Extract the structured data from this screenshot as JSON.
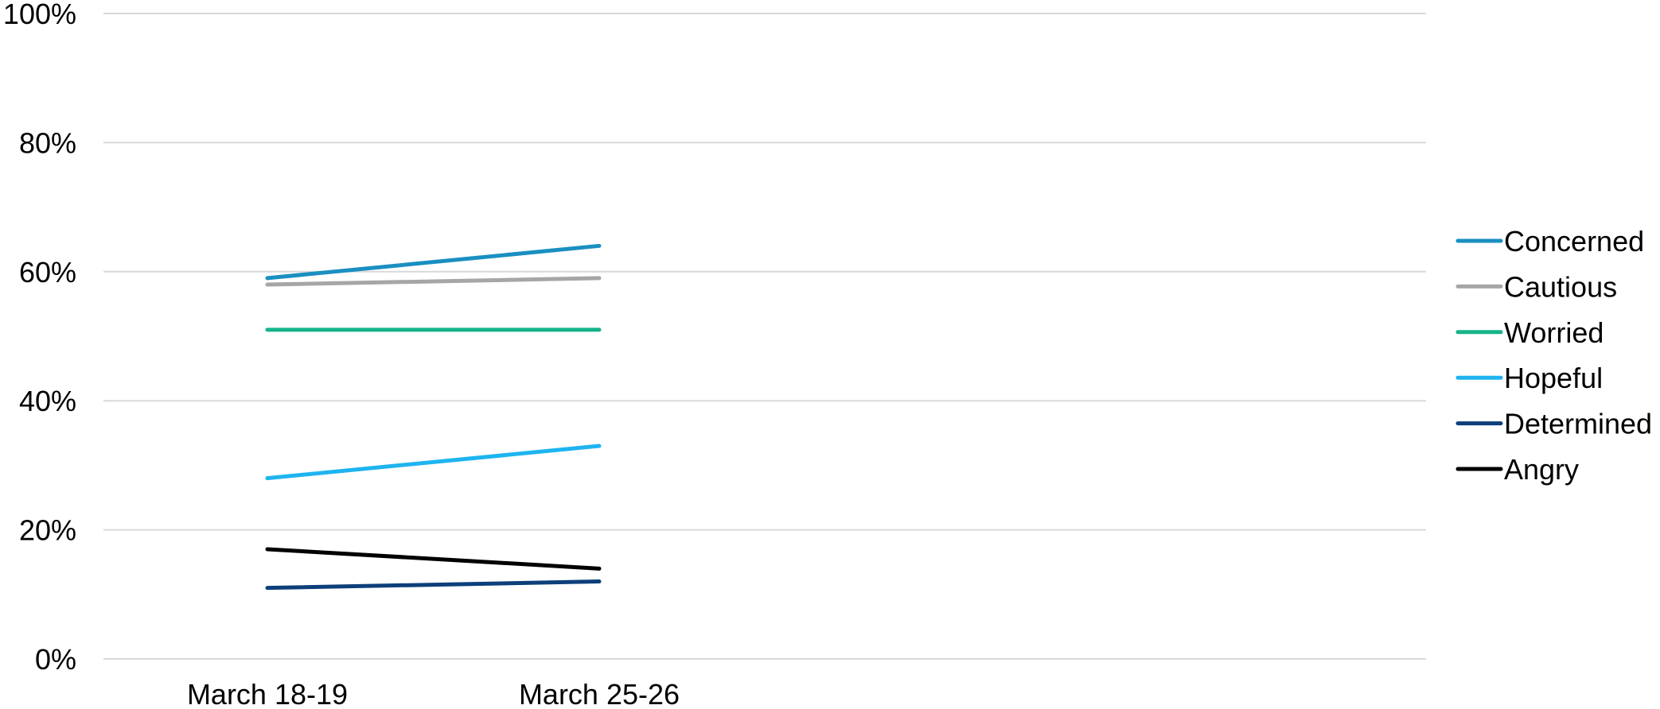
{
  "chart_data": {
    "type": "line",
    "title": "",
    "xlabel": "",
    "ylabel": "",
    "categories": [
      "March 18-19",
      "March 25-26"
    ],
    "ylim": [
      0,
      100
    ],
    "y_ticks": [
      "0%",
      "20%",
      "40%",
      "60%",
      "80%",
      "100%"
    ],
    "grid": true,
    "legend_position": "right",
    "series": [
      {
        "name": "Concerned",
        "color": "#1a8fc1",
        "values": [
          59,
          64
        ]
      },
      {
        "name": "Cautious",
        "color": "#a6a6a6",
        "values": [
          58,
          59
        ]
      },
      {
        "name": "Worried",
        "color": "#16b38a",
        "values": [
          51,
          51
        ]
      },
      {
        "name": "Hopeful",
        "color": "#1eb4f0",
        "values": [
          28,
          33
        ]
      },
      {
        "name": "Determined",
        "color": "#0d3f7a",
        "values": [
          11,
          12
        ]
      },
      {
        "name": "Angry",
        "color": "#000000",
        "values": [
          17,
          14
        ]
      }
    ]
  }
}
